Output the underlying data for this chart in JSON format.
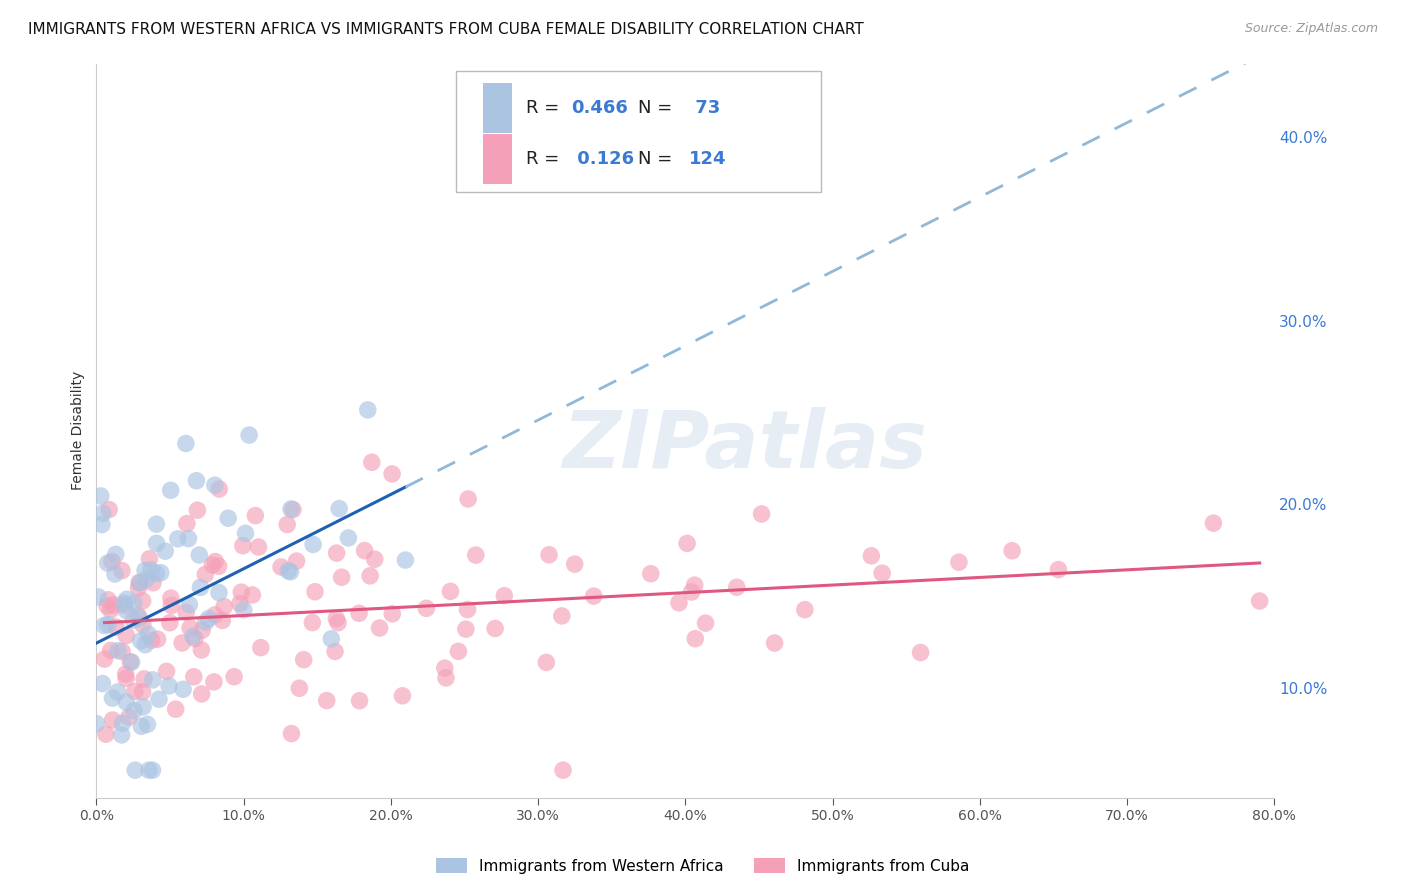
{
  "title": "IMMIGRANTS FROM WESTERN AFRICA VS IMMIGRANTS FROM CUBA FEMALE DISABILITY CORRELATION CHART",
  "source": "Source: ZipAtlas.com",
  "xlim": [
    0.0,
    0.8
  ],
  "ylim": [
    0.04,
    0.44
  ],
  "ylabel": "Female Disability",
  "legend_label1": "Immigrants from Western Africa",
  "legend_label2": "Immigrants from Cuba",
  "R1": 0.466,
  "N1": 73,
  "R2": 0.126,
  "N2": 124,
  "color1": "#aac4e2",
  "color2": "#f4a0b8",
  "color1_line": "#2060b0",
  "color1_dash": "#90b8d8",
  "color2_line": "#e05880",
  "watermark_text": "ZIPatlas",
  "background_color": "#ffffff",
  "grid_color": "#cccccc",
  "title_fontsize": 11,
  "axis_label_fontsize": 10,
  "tick_fontsize": 10,
  "xticks": [
    0.0,
    0.1,
    0.2,
    0.3,
    0.4,
    0.5,
    0.6,
    0.7,
    0.8
  ],
  "yticks": [
    0.1,
    0.2,
    0.3,
    0.4
  ]
}
